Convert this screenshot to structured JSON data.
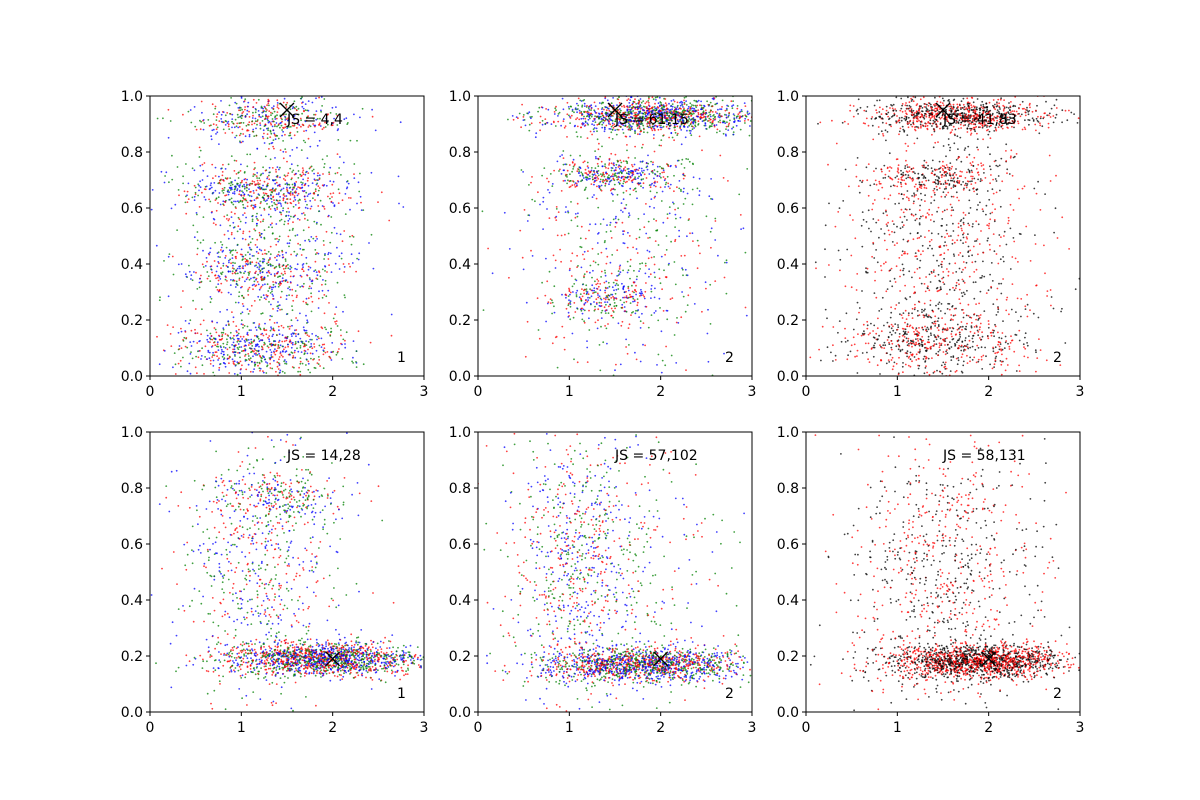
{
  "chart_data": [
    {
      "type": "scatter",
      "xlim": [
        0,
        3
      ],
      "ylim": [
        0,
        1
      ],
      "xticks": [
        "0",
        "1",
        "2",
        "3"
      ],
      "yticks": [
        "0.0",
        "0.2",
        "0.4",
        "0.6",
        "0.8",
        "1.0"
      ],
      "annotation": "JS = 4,4",
      "corner_label": "1",
      "marker": {
        "x": 1.5,
        "y": 0.95
      },
      "series_colors": [
        "#0000ff",
        "#ff0000",
        "#008000"
      ],
      "clusters": [
        {
          "x": 1.3,
          "y": 0.92,
          "spread_x": 0.4,
          "spread_y": 0.04,
          "weight": 0.15
        },
        {
          "x": 1.3,
          "y": 0.66,
          "spread_x": 0.45,
          "spread_y": 0.05,
          "weight": 0.2
        },
        {
          "x": 1.2,
          "y": 0.38,
          "spread_x": 0.4,
          "spread_y": 0.06,
          "weight": 0.15
        },
        {
          "x": 1.2,
          "y": 0.1,
          "spread_x": 0.5,
          "spread_y": 0.05,
          "weight": 0.25
        },
        {
          "x": 1.3,
          "y": 0.5,
          "spread_x": 0.5,
          "spread_y": 0.3,
          "weight": 0.25
        }
      ]
    },
    {
      "type": "scatter",
      "xlim": [
        0,
        3
      ],
      "ylim": [
        0,
        1
      ],
      "xticks": [
        "0",
        "1",
        "2",
        "3"
      ],
      "yticks": [
        "0.0",
        "0.2",
        "0.4",
        "0.6",
        "0.8",
        "1.0"
      ],
      "annotation": "JS = 61,15",
      "corner_label": "2",
      "marker": {
        "x": 1.5,
        "y": 0.95
      },
      "series_colors": [
        "#0000ff",
        "#ff0000",
        "#008000"
      ],
      "clusters": [
        {
          "x": 1.9,
          "y": 0.93,
          "spread_x": 0.55,
          "spread_y": 0.03,
          "weight": 0.5
        },
        {
          "x": 1.5,
          "y": 0.72,
          "spread_x": 0.35,
          "spread_y": 0.03,
          "weight": 0.15
        },
        {
          "x": 1.4,
          "y": 0.28,
          "spread_x": 0.3,
          "spread_y": 0.05,
          "weight": 0.1
        },
        {
          "x": 1.6,
          "y": 0.5,
          "spread_x": 0.6,
          "spread_y": 0.3,
          "weight": 0.25
        }
      ]
    },
    {
      "type": "scatter",
      "xlim": [
        0,
        3
      ],
      "ylim": [
        0,
        1
      ],
      "xticks": [
        "0",
        "1",
        "2",
        "3"
      ],
      "yticks": [
        "0.0",
        "0.2",
        "0.4",
        "0.6",
        "0.8",
        "1.0"
      ],
      "annotation": "JS = 41,83",
      "corner_label": "2",
      "marker": {
        "x": 1.5,
        "y": 0.95
      },
      "series_colors": [
        "#000000",
        "#ff0000"
      ],
      "clusters": [
        {
          "x": 1.7,
          "y": 0.93,
          "spread_x": 0.5,
          "spread_y": 0.03,
          "weight": 0.35
        },
        {
          "x": 1.4,
          "y": 0.71,
          "spread_x": 0.35,
          "spread_y": 0.03,
          "weight": 0.1
        },
        {
          "x": 1.4,
          "y": 0.12,
          "spread_x": 0.5,
          "spread_y": 0.06,
          "weight": 0.2
        },
        {
          "x": 1.5,
          "y": 0.45,
          "spread_x": 0.55,
          "spread_y": 0.28,
          "weight": 0.35
        }
      ]
    },
    {
      "type": "scatter",
      "xlim": [
        0,
        3
      ],
      "ylim": [
        0,
        1
      ],
      "xticks": [
        "0",
        "1",
        "2",
        "3"
      ],
      "yticks": [
        "0.0",
        "0.2",
        "0.4",
        "0.6",
        "0.8",
        "1.0"
      ],
      "annotation": "JS = 14,28",
      "corner_label": "1",
      "marker": {
        "x": 2.0,
        "y": 0.19
      },
      "series_colors": [
        "#0000ff",
        "#ff0000",
        "#008000"
      ],
      "clusters": [
        {
          "x": 1.9,
          "y": 0.19,
          "spread_x": 0.55,
          "spread_y": 0.03,
          "weight": 0.65
        },
        {
          "x": 1.4,
          "y": 0.76,
          "spread_x": 0.35,
          "spread_y": 0.05,
          "weight": 0.1
        },
        {
          "x": 1.2,
          "y": 0.5,
          "spread_x": 0.45,
          "spread_y": 0.25,
          "weight": 0.25
        }
      ]
    },
    {
      "type": "scatter",
      "xlim": [
        0,
        3
      ],
      "ylim": [
        0,
        1
      ],
      "xticks": [
        "0",
        "1",
        "2",
        "3"
      ],
      "yticks": [
        "0.0",
        "0.2",
        "0.4",
        "0.6",
        "0.8",
        "1.0"
      ],
      "annotation": "JS = 57,102",
      "corner_label": "2",
      "marker": {
        "x": 2.0,
        "y": 0.19
      },
      "series_colors": [
        "#0000ff",
        "#ff0000",
        "#008000"
      ],
      "clusters": [
        {
          "x": 1.8,
          "y": 0.17,
          "spread_x": 0.55,
          "spread_y": 0.03,
          "weight": 0.6
        },
        {
          "x": 1.1,
          "y": 0.55,
          "spread_x": 0.35,
          "spread_y": 0.25,
          "weight": 0.25
        },
        {
          "x": 1.4,
          "y": 0.5,
          "spread_x": 0.7,
          "spread_y": 0.3,
          "weight": 0.15
        }
      ]
    },
    {
      "type": "scatter",
      "xlim": [
        0,
        3
      ],
      "ylim": [
        0,
        1
      ],
      "xticks": [
        "0",
        "1",
        "2",
        "3"
      ],
      "yticks": [
        "0.0",
        "0.2",
        "0.4",
        "0.6",
        "0.8",
        "1.0"
      ],
      "annotation": "JS = 58,131",
      "corner_label": "2",
      "marker": {
        "x": 2.0,
        "y": 0.19
      },
      "series_colors": [
        "#000000",
        "#ff0000"
      ],
      "clusters": [
        {
          "x": 1.9,
          "y": 0.18,
          "spread_x": 0.5,
          "spread_y": 0.03,
          "weight": 0.65
        },
        {
          "x": 1.5,
          "y": 0.5,
          "spread_x": 0.55,
          "spread_y": 0.25,
          "weight": 0.35
        }
      ]
    }
  ]
}
